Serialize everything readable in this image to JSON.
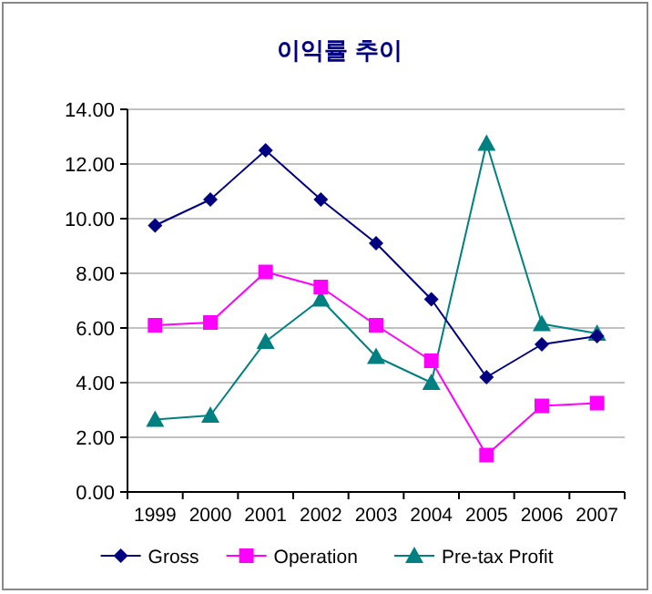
{
  "chart_data": {
    "type": "line",
    "title": "이익률 추이",
    "categories": [
      "1999",
      "2000",
      "2001",
      "2002",
      "2003",
      "2004",
      "2005",
      "2006",
      "2007"
    ],
    "series": [
      {
        "name": "Gross",
        "color": "#000080",
        "marker": "diamond",
        "values": [
          9.75,
          10.7,
          12.5,
          10.7,
          9.1,
          7.05,
          4.2,
          5.4,
          5.7
        ]
      },
      {
        "name": "Operation",
        "color": "#ff00ff",
        "marker": "square",
        "values": [
          6.1,
          6.2,
          8.05,
          7.5,
          6.1,
          4.8,
          1.35,
          3.15,
          3.25
        ]
      },
      {
        "name": "Pre-tax Profit",
        "color": "#008080",
        "marker": "triangle",
        "values": [
          2.65,
          2.8,
          5.5,
          7.05,
          4.95,
          4.0,
          12.75,
          6.15,
          5.8
        ]
      }
    ],
    "ylim": [
      0,
      14
    ],
    "yticks": [
      {
        "value": 0,
        "label": "0.00"
      },
      {
        "value": 2,
        "label": "2.00"
      },
      {
        "value": 4,
        "label": "4.00"
      },
      {
        "value": 6,
        "label": "6.00"
      },
      {
        "value": 8,
        "label": "8.00"
      },
      {
        "value": 10,
        "label": "10.00"
      },
      {
        "value": 12,
        "label": "12.00"
      },
      {
        "value": 14,
        "label": "14.00"
      }
    ],
    "grid": "y",
    "legend": "bottom",
    "line_style": "solid"
  }
}
